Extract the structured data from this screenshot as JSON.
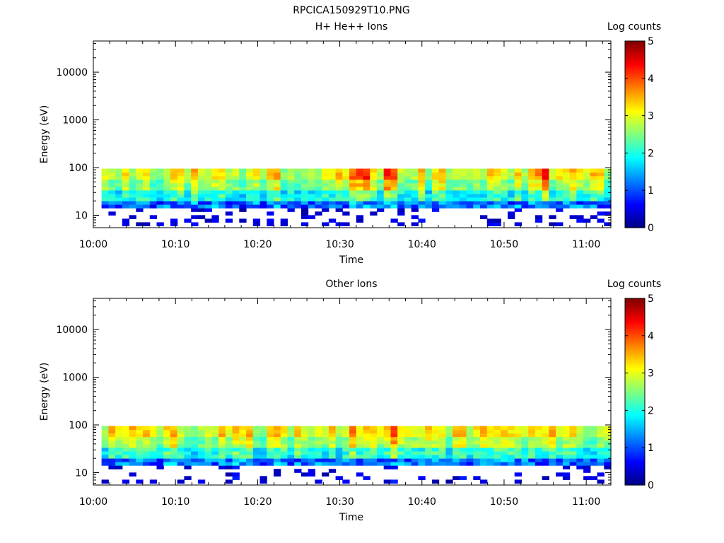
{
  "figure_title": "RPCICA150929T10.PNG",
  "chart_data": [
    {
      "type": "heatmap",
      "title": "H+ He++ Ions",
      "xlabel": "Time",
      "ylabel": "Energy (eV)",
      "xlim": [
        "10:00",
        "11:03"
      ],
      "ylim": [
        5.5,
        45000
      ],
      "yscale": "log",
      "x_ticks": [
        "10:00",
        "10:10",
        "10:20",
        "10:30",
        "10:40",
        "10:50",
        "11:00"
      ],
      "y_ticks": [
        "10",
        "100",
        "1000",
        "10000"
      ],
      "colorbar": {
        "label": "Log counts",
        "range": [
          0,
          5
        ],
        "ticks": [
          "0",
          "1",
          "2",
          "3",
          "4",
          "5"
        ]
      },
      "energy_range_eV": [
        6,
        95
      ],
      "peak_bands_log_counts": [
        {
          "time": "10:31",
          "value": 3.6
        },
        {
          "time": "10:33",
          "value": 3.7
        },
        {
          "time": "10:36",
          "value": 3.9
        },
        {
          "time": "10:48",
          "value": 3.6
        },
        {
          "time": "10:54",
          "value": 3.7
        },
        {
          "time": "10:55",
          "value": 3.6
        },
        {
          "time": "11:01",
          "value": 3.4
        }
      ]
    },
    {
      "type": "heatmap",
      "title": "Other Ions",
      "xlabel": "Time",
      "ylabel": "Energy (eV)",
      "xlim": [
        "10:00",
        "11:03"
      ],
      "ylim": [
        5.5,
        45000
      ],
      "yscale": "log",
      "x_ticks": [
        "10:00",
        "10:10",
        "10:20",
        "10:30",
        "10:40",
        "10:50",
        "11:00"
      ],
      "y_ticks": [
        "10",
        "100",
        "1000",
        "10000"
      ],
      "colorbar": {
        "label": "Log counts",
        "range": [
          0,
          5
        ],
        "ticks": [
          "0",
          "1",
          "2",
          "3",
          "4",
          "5"
        ]
      },
      "energy_range_eV": [
        6,
        95
      ],
      "peak_bands_log_counts": [
        {
          "time": "10:22",
          "value": 3.4
        },
        {
          "time": "10:32",
          "value": 3.6
        },
        {
          "time": "10:36",
          "value": 3.9
        },
        {
          "time": "10:47",
          "value": 3.7
        },
        {
          "time": "10:48",
          "value": 3.7
        },
        {
          "time": "10:54",
          "value": 3.7
        },
        {
          "time": "10:56",
          "value": 3.6
        }
      ]
    }
  ]
}
